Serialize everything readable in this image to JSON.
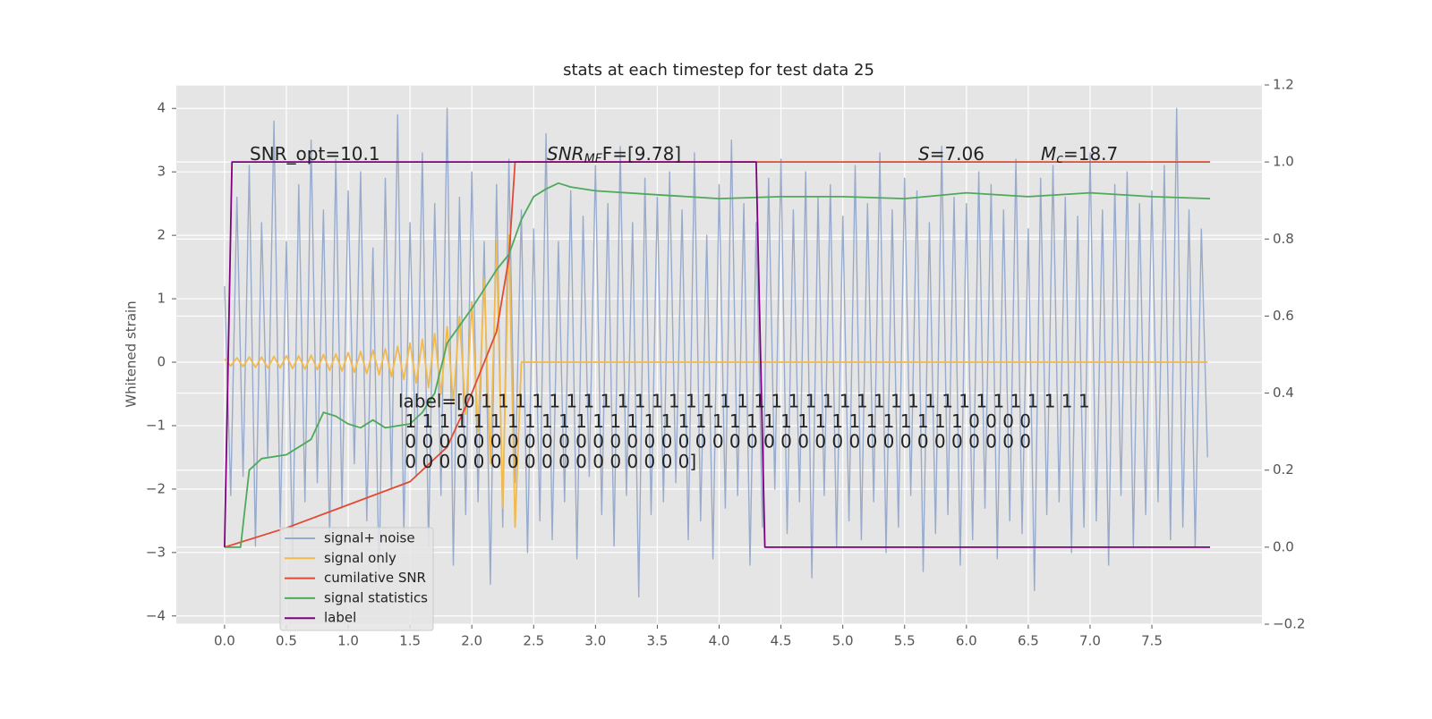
{
  "chart_data": {
    "type": "line",
    "title": "stats at each timestep for test data 25",
    "ylabel": "Whitened strain",
    "xlim": [
      -0.39,
      8.39
    ],
    "ylim": [
      -4.13,
      4.37
    ],
    "y2lim": [
      -0.2,
      1.2
    ],
    "xticks": [
      {
        "value": 0,
        "label": "0.0"
      },
      0.5,
      {
        "value": 1,
        "label": "1.0"
      },
      1.5,
      {
        "value": 2,
        "label": "2.0"
      },
      2.5,
      {
        "value": 3,
        "label": "3.0"
      },
      3.5,
      {
        "value": 4,
        "label": "4.0"
      },
      4.5,
      {
        "value": 5,
        "label": "5.0"
      },
      5.5,
      {
        "value": 6,
        "label": "6.0"
      },
      6.5,
      {
        "value": 7,
        "label": "7.0"
      },
      7.5
    ],
    "yticks": [
      {
        "value": -4,
        "label": "−4"
      },
      {
        "value": -3,
        "label": "−3"
      },
      {
        "value": -2,
        "label": "−2"
      },
      {
        "value": -1,
        "label": "−1"
      },
      0,
      1,
      2,
      3,
      4
    ],
    "y2ticks": [
      {
        "value": -0.2,
        "label": "−0.2"
      },
      {
        "value": 0,
        "label": "0.0"
      },
      0.2,
      0.4,
      0.6,
      0.8,
      {
        "value": 1,
        "label": "1.0"
      },
      1.2
    ],
    "grid": true,
    "legend": "lower left",
    "x": [
      0,
      0.05,
      0.1,
      0.15,
      0.2,
      0.25,
      0.3,
      0.35,
      0.4,
      0.45,
      0.5,
      0.55,
      0.6,
      0.65,
      0.7,
      0.75,
      0.8,
      0.85,
      0.9,
      0.95,
      1,
      1.05,
      1.1,
      1.15,
      1.2,
      1.25,
      1.3,
      1.35,
      1.4,
      1.45,
      1.5,
      1.55,
      1.6,
      1.65,
      1.7,
      1.75,
      1.8,
      1.85,
      1.9,
      1.95,
      2,
      2.05,
      2.1,
      2.15,
      2.2,
      2.25,
      2.3,
      2.35,
      2.4,
      2.45,
      2.5,
      2.55,
      2.6,
      2.65,
      2.7,
      2.75,
      2.8,
      2.85,
      2.9,
      2.95,
      3,
      3.05,
      3.1,
      3.15,
      3.2,
      3.25,
      3.3,
      3.35,
      3.4,
      3.45,
      3.5,
      3.55,
      3.6,
      3.65,
      3.7,
      3.75,
      3.8,
      3.85,
      3.9,
      3.95,
      4,
      4.05,
      4.1,
      4.15,
      4.2,
      4.25,
      4.3,
      4.35,
      4.4,
      4.45,
      4.5,
      4.55,
      4.6,
      4.65,
      4.7,
      4.75,
      4.8,
      4.85,
      4.9,
      4.95,
      5,
      5.05,
      5.1,
      5.15,
      5.2,
      5.25,
      5.3,
      5.35,
      5.4,
      5.45,
      5.5,
      5.55,
      5.6,
      5.65,
      5.7,
      5.75,
      5.8,
      5.85,
      5.9,
      5.95,
      6,
      6.05,
      6.1,
      6.15,
      6.2,
      6.25,
      6.3,
      6.35,
      6.4,
      6.45,
      6.5,
      6.55,
      6.6,
      6.65,
      6.7,
      6.75,
      6.8,
      6.85,
      6.9,
      6.95,
      7,
      7.05,
      7.1,
      7.15,
      7.2,
      7.25,
      7.3,
      7.35,
      7.4,
      7.45,
      7.5,
      7.55,
      7.6,
      7.65,
      7.7,
      7.75,
      7.8,
      7.85,
      7.9,
      7.95
    ],
    "series": [
      {
        "name": "signal+ noise",
        "color": "#98abcd",
        "values": [
          1.2,
          -2.1,
          2.6,
          -1.8,
          3.1,
          -2.9,
          2.2,
          -1.5,
          3.8,
          -2.6,
          1.9,
          -3.1,
          2.8,
          -2.2,
          3.5,
          -1.9,
          2.4,
          -2.8,
          3.2,
          -2.3,
          2.7,
          -1.6,
          3.0,
          -2.5,
          1.8,
          -3.4,
          2.9,
          -2.0,
          3.9,
          -2.7,
          2.2,
          -1.8,
          3.3,
          -2.9,
          2.5,
          -2.1,
          4.0,
          -3.2,
          2.6,
          -2.4,
          3.0,
          -2.2,
          1.9,
          -3.5,
          2.8,
          -2.6,
          3.2,
          -1.9,
          2.4,
          -3.0,
          2.1,
          -2.5,
          3.6,
          -2.8,
          1.9,
          -2.2,
          2.7,
          -3.1,
          2.3,
          -1.8,
          3.1,
          -2.4,
          2.5,
          -2.9,
          3.4,
          -2.1,
          2.2,
          -3.7,
          2.9,
          -2.4,
          2.6,
          -2.2,
          3.0,
          -1.9,
          2.4,
          -2.8,
          3.3,
          -2.5,
          2.0,
          -3.1,
          2.8,
          -2.3,
          3.5,
          -2.1,
          2.5,
          -3.2,
          2.2,
          -2.6,
          2.9,
          -2.0,
          3.2,
          -2.7,
          2.4,
          -2.2,
          3.0,
          -3.4,
          2.6,
          -2.1,
          2.8,
          -2.9,
          2.3,
          -2.5,
          3.1,
          -2.8,
          2.5,
          -2.2,
          3.3,
          -3.0,
          2.4,
          -2.6,
          2.9,
          -2.1,
          2.7,
          -3.3,
          2.2,
          -2.7,
          3.4,
          -2.4,
          2.6,
          -3.2,
          2.5,
          -2.8,
          3.0,
          -2.3,
          2.8,
          -3.1,
          2.4,
          -2.5,
          3.2,
          -2.7,
          2.1,
          -3.6,
          2.9,
          -2.4,
          3.1,
          -2.2,
          2.6,
          -3.0,
          2.3,
          -2.6,
          3.3,
          -2.5,
          2.4,
          -3.2,
          2.8,
          -2.1,
          3.0,
          -2.9,
          2.5,
          -2.4,
          2.7,
          -2.2,
          3.1,
          -2.8,
          4.0,
          -2.6,
          2.4,
          -2.9,
          2.1,
          -1.5
        ]
      },
      {
        "name": "signal only",
        "color": "#f2b94c",
        "values": [
          0.05,
          -0.06,
          0.07,
          -0.07,
          0.08,
          -0.08,
          0.08,
          -0.09,
          0.09,
          -0.09,
          0.1,
          -0.1,
          0.1,
          -0.11,
          0.11,
          -0.12,
          0.12,
          -0.13,
          0.13,
          -0.14,
          0.15,
          -0.16,
          0.17,
          -0.18,
          0.19,
          -0.2,
          0.21,
          -0.23,
          0.25,
          -0.27,
          0.3,
          -0.33,
          0.36,
          -0.4,
          0.45,
          -0.5,
          0.56,
          -0.63,
          0.72,
          -0.82,
          0.95,
          -1.1,
          1.3,
          -1.6,
          1.9,
          -2.3,
          2.0,
          -2.6,
          0,
          0,
          0,
          0,
          0,
          0,
          0,
          0,
          0,
          0,
          0,
          0,
          0,
          0,
          0,
          0,
          0,
          0,
          0,
          0,
          0,
          0,
          0,
          0,
          0,
          0,
          0,
          0,
          0,
          0,
          0,
          0,
          0,
          0,
          0,
          0,
          0,
          0,
          0,
          0,
          0,
          0,
          0,
          0,
          0,
          0,
          0,
          0,
          0,
          0,
          0,
          0,
          0,
          0,
          0,
          0,
          0,
          0,
          0,
          0,
          0,
          0,
          0,
          0,
          0,
          0,
          0,
          0,
          0,
          0,
          0,
          0,
          0,
          0,
          0,
          0,
          0,
          0,
          0,
          0,
          0,
          0,
          0,
          0,
          0,
          0,
          0,
          0,
          0,
          0,
          0,
          0,
          0,
          0,
          0,
          0,
          0,
          0,
          0,
          0,
          0,
          0,
          0,
          0,
          0,
          0,
          0,
          0,
          0,
          0,
          0,
          0
        ]
      },
      {
        "name": "cumilative SNR",
        "color": "#e24a33",
        "axis": "y2",
        "x": [
          0,
          0.5,
          1,
          1.5,
          1.8,
          2,
          2.2,
          2.3,
          2.35,
          7.97
        ],
        "values": [
          0,
          0.05,
          0.11,
          0.17,
          0.26,
          0.4,
          0.56,
          0.75,
          1,
          1
        ]
      },
      {
        "name": "signal statistics",
        "color": "#4daa5a",
        "axis": "y2",
        "x": [
          0,
          0.13,
          0.2,
          0.3,
          0.5,
          0.7,
          0.8,
          0.9,
          1,
          1.1,
          1.2,
          1.3,
          1.5,
          1.6,
          1.7,
          1.8,
          2,
          2.2,
          2.3,
          2.4,
          2.5,
          2.6,
          2.7,
          2.8,
          3,
          3.5,
          4,
          4.5,
          5,
          5.5,
          6,
          6.5,
          7,
          7.5,
          7.97
        ],
        "values": [
          0,
          0,
          0.2,
          0.23,
          0.24,
          0.28,
          0.35,
          0.34,
          0.32,
          0.31,
          0.33,
          0.31,
          0.32,
          0.35,
          0.4,
          0.53,
          0.62,
          0.72,
          0.76,
          0.85,
          0.91,
          0.93,
          0.945,
          0.935,
          0.925,
          0.915,
          0.905,
          0.91,
          0.91,
          0.905,
          0.92,
          0.91,
          0.92,
          0.91,
          0.905
        ]
      },
      {
        "name": "label",
        "color": "#800080",
        "axis": "y2",
        "x": [
          0,
          0.06,
          4.3,
          4.37,
          7.97
        ],
        "values": [
          0,
          1,
          1,
          0,
          0
        ]
      }
    ],
    "annotations": [
      [
        {
          "text": "SNR_opt=10.1"
        }
      ],
      [
        {
          "text": "SNR",
          "italic": true
        },
        {
          "text": "MF",
          "italic": true,
          "sub": true
        },
        {
          "text": "F=[9.78]"
        }
      ],
      [
        {
          "text": "S",
          "italic": true
        },
        {
          "text": "=7.06"
        }
      ],
      [
        {
          "text": "M",
          "italic": true
        },
        {
          "text": "c",
          "italic": true,
          "sub": true
        },
        {
          "text": "=18.7"
        }
      ]
    ],
    "label_text": [
      "label=[0 1 1 1 1 1 1 1 1 1 1 1 1 1 1 1 1 1 1 1 1 1 1 1 1 1 1 1 1 1 1 1 1 1 1 1 1",
      " 1 1 1 1 1 1 1 1 1 1 1 1 1 1 1 1 1 1 1 1 1 1 1 1 1 1 1 1 1 1 1 1 1 0 0 0 0",
      " 0 0 0 0 0 0 0 0 0 0 0 0 0 0 0 0 0 0 0 0 0 0 0 0 0 0 0 0 0 0 0 0 0 0 0 0 0",
      " 0 0 0 0 0 0 0 0 0 0 0 0 0 0 0 0 0]"
    ]
  }
}
